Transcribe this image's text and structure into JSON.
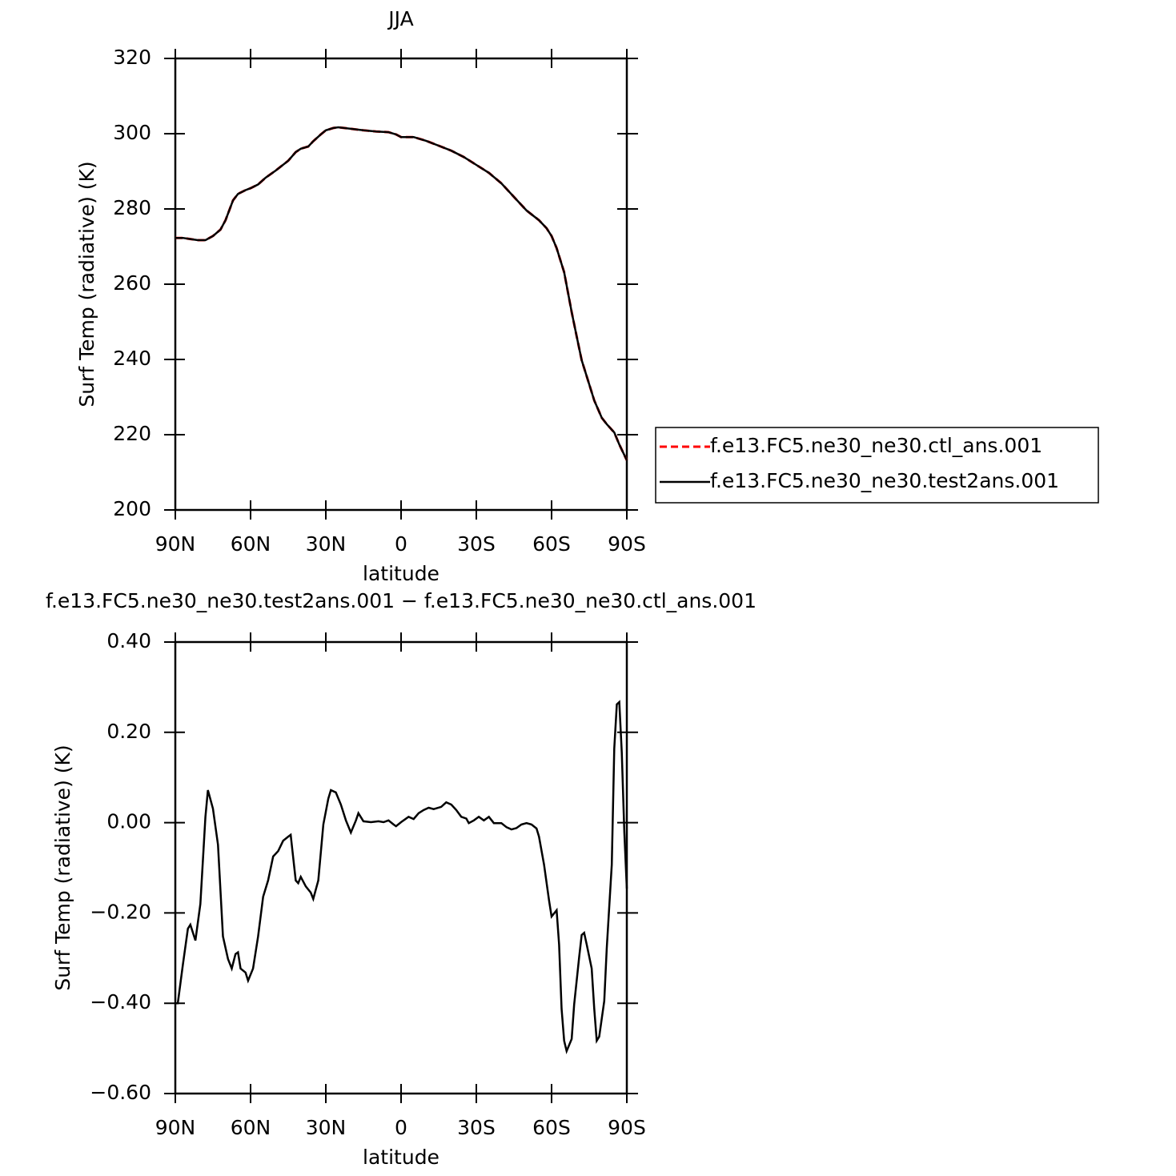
{
  "chart_data": [
    {
      "type": "line",
      "title": "JJA",
      "xlabel": "latitude",
      "ylabel": "Surf Temp (radiative) (K)",
      "x": [
        90,
        87,
        84,
        81,
        78,
        75,
        72,
        70,
        67,
        65,
        62,
        60,
        57,
        54,
        50,
        45,
        42,
        40,
        37,
        35,
        32,
        30,
        27,
        25,
        20,
        15,
        10,
        5,
        2,
        0,
        -5,
        -10,
        -15,
        -20,
        -25,
        -30,
        -35,
        -40,
        -45,
        -50,
        -55,
        -58,
        -60,
        -62,
        -65,
        -68,
        -70,
        -72,
        -75,
        -77,
        -80,
        -82,
        -85,
        -87,
        -90
      ],
      "series": [
        {
          "name": "f.e13.FC5.ne30_ne30.ctl_ans.001",
          "color": "#ff0000",
          "dash": true,
          "values": [
            272.3,
            272.3,
            272,
            271.7,
            271.7,
            272.8,
            274.5,
            277,
            282.3,
            284,
            285,
            285.5,
            286.5,
            288.3,
            290.2,
            292.8,
            295.1,
            296,
            296.6,
            298,
            299.8,
            300.9,
            301.5,
            301.7,
            301.3,
            300.9,
            300.6,
            300.4,
            299.8,
            299.1,
            299.1,
            298.1,
            296.8,
            295.5,
            293.8,
            291.7,
            289.6,
            286.8,
            283.2,
            279.6,
            277,
            274.9,
            272.8,
            269.6,
            263.2,
            252.6,
            246.2,
            239.8,
            233.4,
            229.1,
            224.5,
            222.8,
            220.6,
            217.4,
            213.2
          ]
        },
        {
          "name": "f.e13.FC5.ne30_ne30.test2ans.001",
          "color": "#000000",
          "dash": false,
          "values": [
            272.3,
            272.3,
            272,
            271.7,
            271.7,
            272.8,
            274.5,
            277,
            282.3,
            284,
            285,
            285.5,
            286.5,
            288.3,
            290.2,
            292.8,
            295.1,
            296,
            296.6,
            298,
            299.8,
            300.9,
            301.5,
            301.7,
            301.3,
            300.9,
            300.6,
            300.4,
            299.8,
            299.1,
            299.1,
            298.1,
            296.8,
            295.5,
            293.8,
            291.7,
            289.6,
            286.8,
            283.2,
            279.6,
            277,
            274.9,
            272.8,
            269.6,
            263.2,
            252.6,
            246.2,
            239.8,
            233.4,
            229.1,
            224.5,
            222.8,
            220.6,
            217.4,
            213.2
          ]
        }
      ],
      "xlim": [
        90,
        -90
      ],
      "xticks": [
        {
          "value": 90,
          "label": "90N"
        },
        {
          "value": 60,
          "label": "60N"
        },
        {
          "value": 30,
          "label": "30N"
        },
        0,
        {
          "value": -30,
          "label": "30S"
        },
        {
          "value": -60,
          "label": "60S"
        },
        {
          "value": -90,
          "label": "90S"
        }
      ],
      "ylim": [
        200,
        320
      ],
      "yticks": [
        200,
        220,
        240,
        260,
        280,
        300,
        320
      ],
      "legend": "right"
    },
    {
      "type": "line",
      "title": "f.e13.FC5.ne30_ne30.test2ans.001 − f.e13.FC5.ne30_ne30.ctl_ans.001",
      "xlabel": "latitude",
      "ylabel": "Surf Temp (radiative) (K)",
      "x": [
        90,
        89,
        87,
        85,
        84,
        82,
        80,
        78,
        77,
        75,
        73,
        71,
        69,
        67.5,
        66,
        65,
        64,
        62,
        61,
        59,
        57,
        55,
        53,
        51,
        49,
        47,
        45,
        44,
        42,
        41,
        40,
        38,
        36,
        35,
        33,
        31,
        29,
        28,
        26,
        24,
        22,
        20,
        18,
        17,
        15,
        12,
        9,
        7,
        5,
        3,
        2,
        0,
        -3,
        -5,
        -7,
        -9,
        -11,
        -13,
        -16,
        -18,
        -20,
        -22,
        -24,
        -26,
        -27,
        -29,
        -31,
        -33,
        -35,
        -37,
        -40,
        -42,
        -44,
        -46,
        -48,
        -50,
        -52,
        -54,
        -55,
        -57,
        -59,
        -60,
        -62,
        -63,
        -64,
        -65,
        -66,
        -68,
        -69,
        -71,
        -72,
        -73,
        -74,
        -76,
        -77,
        -78,
        -79,
        -81,
        -82,
        -84,
        -85,
        -86,
        -87,
        -88,
        -89,
        -90
      ],
      "series": [
        {
          "color": "#000000",
          "values": [
            -0.4,
            -0.4,
            -0.315,
            -0.235,
            -0.226,
            -0.261,
            -0.18,
            0.013,
            0.072,
            0.031,
            -0.049,
            -0.252,
            -0.302,
            -0.323,
            -0.291,
            -0.287,
            -0.323,
            -0.332,
            -0.35,
            -0.323,
            -0.252,
            -0.164,
            -0.128,
            -0.075,
            -0.063,
            -0.04,
            -0.031,
            -0.027,
            -0.128,
            -0.134,
            -0.12,
            -0.141,
            -0.155,
            -0.169,
            -0.128,
            -0.004,
            0.053,
            0.072,
            0.067,
            0.04,
            0.005,
            -0.022,
            0.005,
            0.021,
            0.003,
            0.001,
            0.003,
            0.001,
            0.005,
            -0.004,
            -0.008,
            0.001,
            0.013,
            0.008,
            0.021,
            0.028,
            0.033,
            0.03,
            0.035,
            0.045,
            0.04,
            0.028,
            0.013,
            0.009,
            -0.001,
            0.005,
            0.013,
            0.005,
            0.013,
            -0.001,
            -0.001,
            -0.01,
            -0.015,
            -0.012,
            -0.004,
            -0.001,
            -0.004,
            -0.013,
            -0.031,
            -0.093,
            -0.173,
            -0.208,
            -0.194,
            -0.27,
            -0.412,
            -0.483,
            -0.506,
            -0.479,
            -0.403,
            -0.297,
            -0.249,
            -0.244,
            -0.27,
            -0.323,
            -0.412,
            -0.483,
            -0.474,
            -0.395,
            -0.279,
            -0.093,
            0.164,
            0.262,
            0.267,
            0.155,
            -0.022,
            -0.146
          ]
        }
      ],
      "xlim": [
        90,
        -90
      ],
      "xticks": [
        {
          "value": 90,
          "label": "90N"
        },
        {
          "value": 60,
          "label": "60N"
        },
        {
          "value": 30,
          "label": "30N"
        },
        0,
        {
          "value": -30,
          "label": "30S"
        },
        {
          "value": -60,
          "label": "60S"
        },
        {
          "value": -90,
          "label": "90S"
        }
      ],
      "ylim": [
        -0.6,
        0.4
      ],
      "yticks": [
        {
          "value": -0.6,
          "label": "−0.60"
        },
        {
          "value": -0.4,
          "label": "−0.40"
        },
        {
          "value": -0.2,
          "label": "−0.20"
        },
        {
          "value": 0,
          "label": "0.00"
        },
        {
          "value": 0.2,
          "label": "0.20"
        },
        {
          "value": 0.4,
          "label": "0.40"
        }
      ]
    }
  ]
}
